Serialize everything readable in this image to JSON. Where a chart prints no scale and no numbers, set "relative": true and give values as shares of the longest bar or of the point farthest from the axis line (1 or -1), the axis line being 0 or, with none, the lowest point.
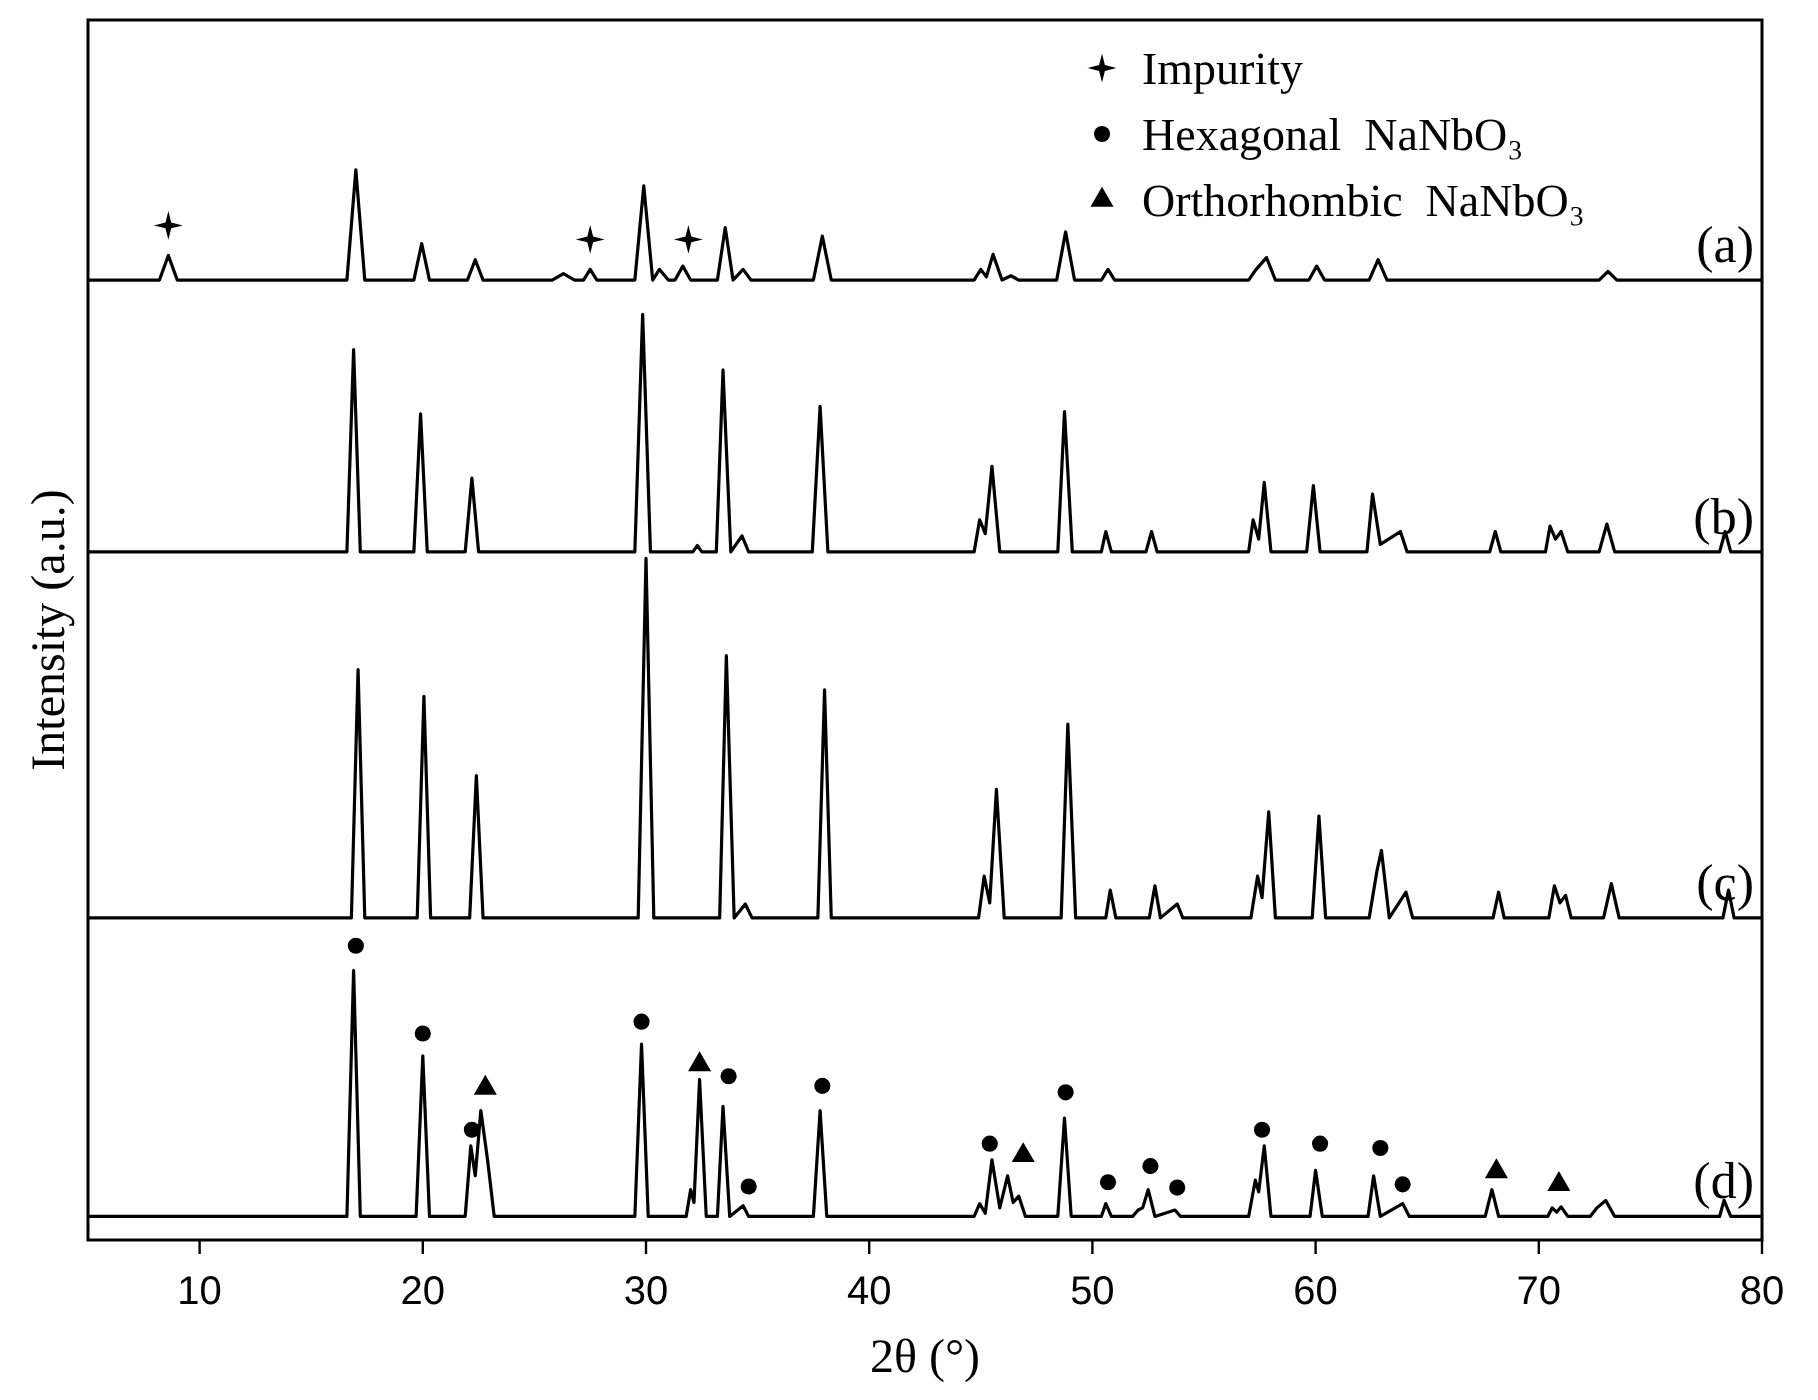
{
  "chart_data": {
    "type": "line",
    "xlabel": "2θ (°)",
    "ylabel": "Intensity (a.u.)",
    "relative": true,
    "xlim": [
      5,
      80
    ],
    "xticks": [
      10,
      20,
      30,
      40,
      50,
      60,
      70,
      80
    ],
    "grid": false,
    "legend": "top right",
    "line_style": "solid",
    "marker": "none",
    "series": [
      {
        "name": "(a)",
        "color": "#000000",
        "x": [
          5,
          8.2,
          8.6,
          9.0,
          16.6,
          17.0,
          17.4,
          19.6,
          19.95,
          20.3,
          22.0,
          22.35,
          22.7,
          25.8,
          26.3,
          26.8,
          27.2,
          27.5,
          27.8,
          29.5,
          29.9,
          30.3,
          30.6,
          31.0,
          31.3,
          31.65,
          32.0,
          33.2,
          33.55,
          33.9,
          34.35,
          34.7,
          37.5,
          37.9,
          38.3,
          44.7,
          45.0,
          45.25,
          45.55,
          45.95,
          46.35,
          46.7,
          48.4,
          48.8,
          49.2,
          50.4,
          50.7,
          51.0,
          57.0,
          57.3,
          57.8,
          58.2,
          59.7,
          60.05,
          60.4,
          62.4,
          62.8,
          63.2,
          72.7,
          73.1,
          73.5,
          80
        ],
        "values": [
          0.897,
          0.897,
          0.92,
          0.897,
          0.897,
          1.0,
          0.897,
          0.897,
          0.931,
          0.897,
          0.897,
          0.916,
          0.897,
          0.897,
          0.903,
          0.897,
          0.897,
          0.907,
          0.897,
          0.897,
          0.985,
          0.897,
          0.907,
          0.897,
          0.897,
          0.91,
          0.897,
          0.897,
          0.946,
          0.897,
          0.907,
          0.897,
          0.897,
          0.938,
          0.897,
          0.897,
          0.907,
          0.9,
          0.921,
          0.897,
          0.901,
          0.897,
          0.897,
          0.942,
          0.897,
          0.897,
          0.907,
          0.897,
          0.897,
          0.906,
          0.918,
          0.897,
          0.897,
          0.91,
          0.897,
          0.897,
          0.916,
          0.897,
          0.897,
          0.905,
          0.897,
          0.897
        ]
      },
      {
        "name": "(b)",
        "color": "#000000",
        "x": [
          5,
          16.6,
          16.9,
          17.2,
          19.6,
          19.9,
          20.2,
          21.9,
          22.2,
          22.5,
          29.5,
          29.85,
          30.2,
          32.1,
          32.3,
          32.5,
          33.15,
          33.45,
          33.8,
          34.3,
          34.6,
          37.45,
          37.8,
          38.15,
          44.7,
          44.95,
          45.2,
          45.5,
          45.85,
          48.45,
          48.75,
          49.1,
          50.4,
          50.6,
          50.85,
          52.4,
          52.65,
          52.9,
          57.0,
          57.2,
          57.45,
          57.7,
          58.0,
          59.6,
          59.9,
          60.2,
          62.3,
          62.55,
          62.9,
          63.8,
          64.1,
          67.8,
          68.05,
          68.3,
          70.3,
          70.5,
          70.75,
          71.0,
          71.3,
          72.7,
          73.05,
          73.4,
          78.1,
          78.35,
          78.6,
          80
        ],
        "values": [
          0.643,
          0.643,
          0.832,
          0.643,
          0.643,
          0.772,
          0.643,
          0.643,
          0.712,
          0.643,
          0.643,
          0.865,
          0.643,
          0.643,
          0.649,
          0.643,
          0.643,
          0.813,
          0.643,
          0.658,
          0.643,
          0.643,
          0.779,
          0.643,
          0.643,
          0.673,
          0.66,
          0.723,
          0.643,
          0.643,
          0.774,
          0.643,
          0.643,
          0.662,
          0.643,
          0.643,
          0.662,
          0.643,
          0.643,
          0.673,
          0.655,
          0.708,
          0.643,
          0.643,
          0.705,
          0.643,
          0.643,
          0.697,
          0.65,
          0.662,
          0.643,
          0.643,
          0.662,
          0.643,
          0.643,
          0.667,
          0.655,
          0.662,
          0.643,
          0.643,
          0.669,
          0.643,
          0.643,
          0.662,
          0.643,
          0.643
        ]
      },
      {
        "name": "(c)",
        "color": "#000000",
        "x": [
          5,
          16.8,
          17.1,
          17.4,
          19.75,
          20.05,
          20.35,
          22.1,
          22.4,
          22.7,
          29.65,
          30.0,
          30.35,
          33.3,
          33.6,
          33.95,
          34.45,
          34.75,
          37.7,
          38.0,
          38.3,
          44.9,
          45.15,
          45.4,
          45.7,
          46.05,
          48.6,
          48.9,
          49.25,
          50.6,
          50.8,
          51.05,
          52.55,
          52.8,
          53.05,
          53.8,
          54.05,
          57.1,
          57.4,
          57.6,
          57.9,
          58.2,
          59.85,
          60.15,
          60.45,
          62.4,
          62.75,
          62.95,
          63.3,
          64.05,
          64.35,
          67.95,
          68.2,
          68.45,
          70.45,
          70.7,
          70.95,
          71.2,
          71.45,
          72.9,
          73.25,
          73.6,
          78.25,
          78.5,
          78.75,
          80
        ],
        "values": [
          0.301,
          0.301,
          0.533,
          0.301,
          0.301,
          0.508,
          0.301,
          0.301,
          0.434,
          0.301,
          0.301,
          0.637,
          0.301,
          0.301,
          0.546,
          0.301,
          0.314,
          0.301,
          0.301,
          0.514,
          0.301,
          0.301,
          0.34,
          0.315,
          0.421,
          0.301,
          0.301,
          0.482,
          0.301,
          0.301,
          0.327,
          0.301,
          0.301,
          0.331,
          0.301,
          0.314,
          0.301,
          0.301,
          0.34,
          0.32,
          0.4,
          0.301,
          0.301,
          0.396,
          0.301,
          0.301,
          0.345,
          0.364,
          0.301,
          0.325,
          0.301,
          0.301,
          0.325,
          0.301,
          0.301,
          0.331,
          0.315,
          0.322,
          0.301,
          0.301,
          0.333,
          0.301,
          0.301,
          0.327,
          0.301,
          0.301
        ]
      },
      {
        "name": "(d)",
        "color": "#000000",
        "x": [
          5,
          16.6,
          16.9,
          17.2,
          19.7,
          20.0,
          20.3,
          21.9,
          22.15,
          22.35,
          22.6,
          22.9,
          23.2,
          29.5,
          29.8,
          30.1,
          31.8,
          32.0,
          32.15,
          32.4,
          32.7,
          33.2,
          33.45,
          33.75,
          34.35,
          34.6,
          37.5,
          37.8,
          38.1,
          44.7,
          44.95,
          45.2,
          45.5,
          45.85,
          46.2,
          46.45,
          46.7,
          47.0,
          48.45,
          48.75,
          49.05,
          50.4,
          50.6,
          50.85,
          51.8,
          52.05,
          52.25,
          52.5,
          52.8,
          53.7,
          53.95,
          57.0,
          57.3,
          57.45,
          57.7,
          58.0,
          59.75,
          60.0,
          60.3,
          62.35,
          62.6,
          62.9,
          63.9,
          64.2,
          67.6,
          67.9,
          68.2,
          70.4,
          70.6,
          70.8,
          71.0,
          71.3,
          72.3,
          72.6,
          73.0,
          73.4,
          78.1,
          78.3,
          78.6,
          80
        ],
        "values": [
          0.022,
          0.022,
          0.252,
          0.022,
          0.022,
          0.172,
          0.022,
          0.022,
          0.088,
          0.06,
          0.121,
          0.075,
          0.022,
          0.022,
          0.183,
          0.022,
          0.022,
          0.047,
          0.035,
          0.15,
          0.022,
          0.022,
          0.125,
          0.022,
          0.032,
          0.022,
          0.022,
          0.121,
          0.022,
          0.022,
          0.034,
          0.025,
          0.075,
          0.03,
          0.06,
          0.035,
          0.041,
          0.022,
          0.022,
          0.114,
          0.022,
          0.022,
          0.034,
          0.022,
          0.022,
          0.028,
          0.03,
          0.047,
          0.022,
          0.028,
          0.022,
          0.022,
          0.056,
          0.045,
          0.088,
          0.022,
          0.022,
          0.065,
          0.022,
          0.022,
          0.06,
          0.022,
          0.034,
          0.022,
          0.022,
          0.047,
          0.022,
          0.022,
          0.03,
          0.026,
          0.031,
          0.022,
          0.022,
          0.03,
          0.037,
          0.022,
          0.022,
          0.037,
          0.022,
          0.022
        ]
      },
      {
        "name": "Impurity",
        "type": "scatter",
        "marker": "star",
        "color": "#000000",
        "x": [
          8.6,
          27.5,
          31.9
        ],
        "values": [
          0.948,
          0.935,
          0.935
        ]
      },
      {
        "name": "Hexagonal  NaNbO₃",
        "type": "scatter",
        "marker": "circle",
        "color": "#000000",
        "x": [
          17.0,
          20.0,
          22.2,
          29.8,
          33.7,
          34.6,
          37.9,
          45.4,
          48.8,
          50.7,
          52.6,
          53.8,
          57.6,
          60.2,
          62.9,
          63.9
        ],
        "values": [
          0.275,
          0.193,
          0.103,
          0.204,
          0.153,
          0.05,
          0.144,
          0.09,
          0.138,
          0.054,
          0.069,
          0.049,
          0.103,
          0.09,
          0.086,
          0.052
        ]
      },
      {
        "name": "Orthorhombic  NaNbO₃",
        "type": "scatter",
        "marker": "triangle",
        "color": "#000000",
        "x": [
          22.8,
          32.4,
          46.9,
          68.1,
          70.9
        ],
        "values": [
          0.142,
          0.164,
          0.079,
          0.064,
          0.052
        ]
      }
    ]
  }
}
